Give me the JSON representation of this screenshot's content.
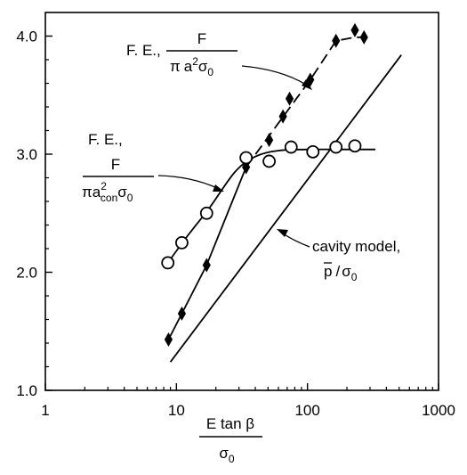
{
  "chart_data": {
    "type": "line",
    "x_scale": "log",
    "xlim": [
      1,
      1000
    ],
    "ylim": [
      1.0,
      4.2
    ],
    "x_ticks": [
      {
        "value": 1,
        "label": "1"
      },
      {
        "value": 10,
        "label": "10"
      },
      {
        "value": 100,
        "label": "100"
      },
      {
        "value": 1000,
        "label": "1000"
      }
    ],
    "y_ticks": [
      {
        "value": 1.0,
        "label": "1.0"
      },
      {
        "value": 2.0,
        "label": "2.0"
      },
      {
        "value": 3.0,
        "label": "3.0"
      },
      {
        "value": 4.0,
        "label": "4.0"
      }
    ],
    "xlabel": {
      "num": "E tan β",
      "den": "σ",
      "den_sub": "0"
    },
    "grid": false,
    "series": [
      {
        "label_prefix": "F. E.,",
        "marker": "diamond",
        "line_style": "dashed",
        "data": [
          {
            "x": 8.7,
            "y": 1.43
          },
          {
            "x": 11,
            "y": 1.65
          },
          {
            "x": 17,
            "y": 2.06
          },
          {
            "x": 34,
            "y": 2.89
          },
          {
            "x": 51,
            "y": 3.12
          },
          {
            "x": 65,
            "y": 3.32
          },
          {
            "x": 73,
            "y": 3.47
          },
          {
            "x": 105,
            "y": 3.63
          },
          {
            "x": 165,
            "y": 3.96
          },
          {
            "x": 230,
            "y": 4.05
          },
          {
            "x": 270,
            "y": 3.99
          }
        ],
        "curve": [
          {
            "x": 8.7,
            "y": 1.43
          },
          {
            "x": 11,
            "y": 1.65
          },
          {
            "x": 17,
            "y": 2.06
          },
          {
            "x": 34,
            "y": 2.89
          },
          {
            "x": 105,
            "y": 3.63
          },
          {
            "x": 165,
            "y": 3.96
          },
          {
            "x": 230,
            "y": 3.99
          },
          {
            "x": 300,
            "y": 3.99
          }
        ]
      },
      {
        "label_prefix": "F. E.,",
        "marker": "circle",
        "line_style": "solid",
        "data": [
          {
            "x": 8.6,
            "y": 2.08
          },
          {
            "x": 11,
            "y": 2.25
          },
          {
            "x": 17,
            "y": 2.5
          },
          {
            "x": 34,
            "y": 2.97
          },
          {
            "x": 51,
            "y": 2.94
          },
          {
            "x": 75,
            "y": 3.06
          },
          {
            "x": 110,
            "y": 3.02
          },
          {
            "x": 165,
            "y": 3.06
          },
          {
            "x": 230,
            "y": 3.07
          }
        ],
        "curve": [
          {
            "x": 8.6,
            "y": 2.08
          },
          {
            "x": 12,
            "y": 2.3
          },
          {
            "x": 18,
            "y": 2.55
          },
          {
            "x": 28,
            "y": 2.85
          },
          {
            "x": 40,
            "y": 2.98
          },
          {
            "x": 60,
            "y": 3.03
          },
          {
            "x": 100,
            "y": 3.04
          },
          {
            "x": 200,
            "y": 3.04
          },
          {
            "x": 330,
            "y": 3.04
          }
        ]
      },
      {
        "label": "cavity model,",
        "label_line2": "p / σ",
        "marker": "none",
        "line_style": "solid",
        "curve": [
          {
            "x": 9,
            "y": 1.24
          },
          {
            "x": 520,
            "y": 3.84
          }
        ]
      }
    ]
  },
  "annotations": {
    "fe_label": "F. E.,",
    "numerator": "F",
    "pi": "π",
    "a": "a",
    "two": "2",
    "con": "con",
    "sigma": "σ",
    "zero": "0",
    "cavity_line1": "cavity model,",
    "p": "p",
    "slash": "/"
  }
}
